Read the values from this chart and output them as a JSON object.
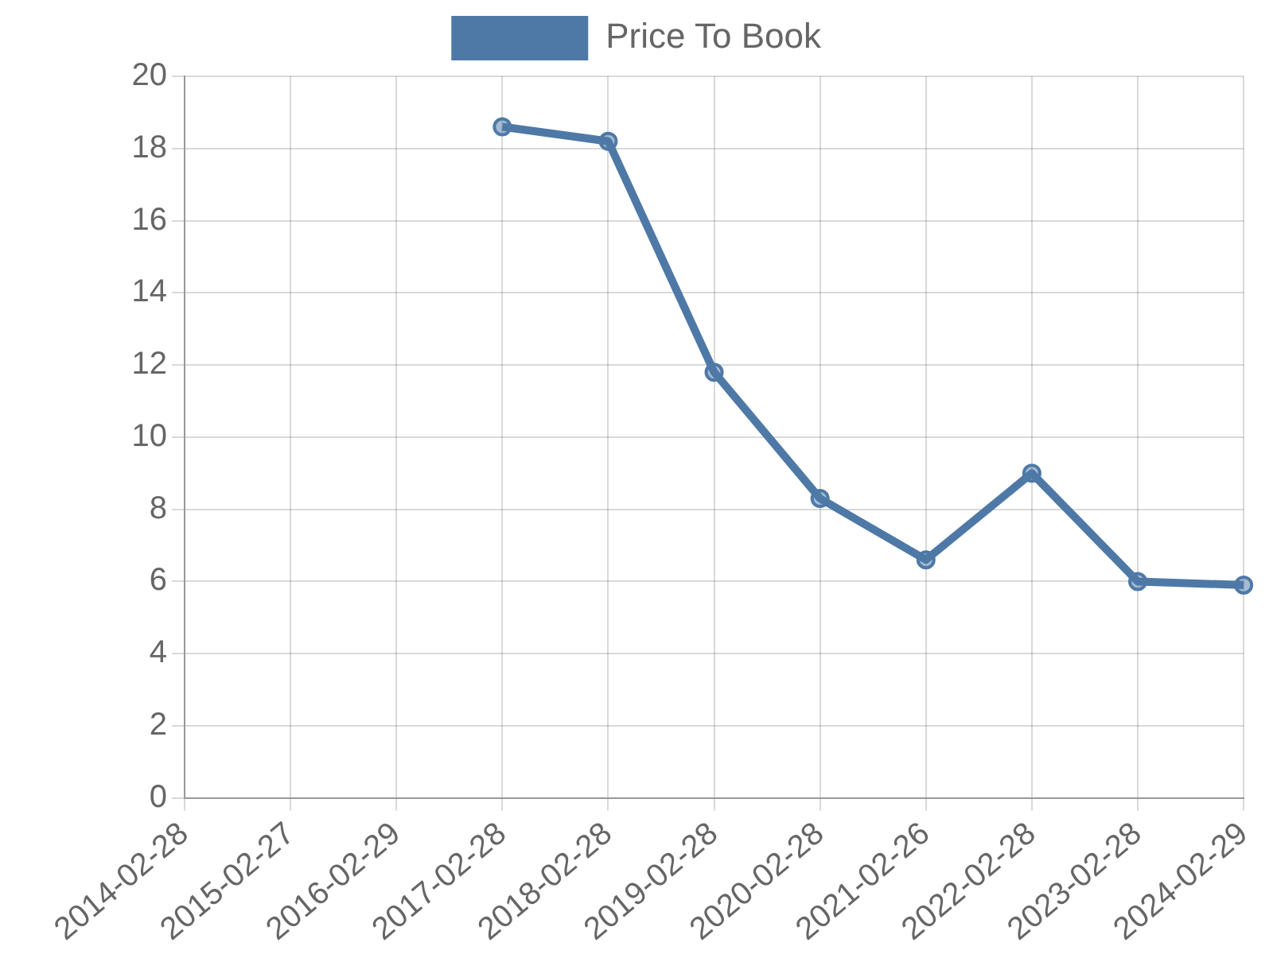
{
  "chart_data": {
    "type": "line",
    "categories": [
      "2014-02-28",
      "2015-02-27",
      "2016-02-29",
      "2017-02-28",
      "2018-02-28",
      "2019-02-28",
      "2020-02-28",
      "2021-02-26",
      "2022-02-28",
      "2023-02-28",
      "2024-02-29"
    ],
    "series": [
      {
        "name": "Price To Book",
        "color": "#4e79a7",
        "values": [
          null,
          null,
          null,
          18.6,
          18.2,
          11.8,
          8.3,
          6.6,
          9.0,
          6.0,
          5.9
        ]
      }
    ],
    "ylim": [
      0,
      20
    ],
    "yticks": [
      0,
      2,
      4,
      6,
      8,
      10,
      12,
      14,
      16,
      18,
      20
    ],
    "grid": true,
    "legend": "top",
    "marker": "circle"
  }
}
